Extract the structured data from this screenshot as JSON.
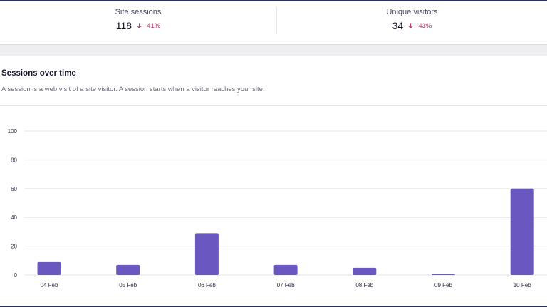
{
  "stats": [
    {
      "label": "Site sessions",
      "value": "118",
      "delta": "-41%"
    },
    {
      "label": "Unique visitors",
      "value": "34",
      "delta": "-43%"
    }
  ],
  "section": {
    "title": "Sessions over time",
    "description": "A session is a web visit of a site visitor. A session starts when a visitor reaches your site."
  },
  "colors": {
    "bar": "#6b57c0",
    "negative": "#c0356a"
  },
  "chart_data": {
    "type": "bar",
    "title": "Sessions over time",
    "categories": [
      "04 Feb",
      "05 Feb",
      "06 Feb",
      "07 Feb",
      "08 Feb",
      "09 Feb",
      "10 Feb"
    ],
    "values": [
      9,
      7,
      29,
      7,
      5,
      1,
      60
    ],
    "ylim": [
      0,
      100
    ],
    "yticks": [
      0,
      20,
      40,
      60,
      80,
      100
    ],
    "xlabel": "",
    "ylabel": "",
    "grid": true
  }
}
